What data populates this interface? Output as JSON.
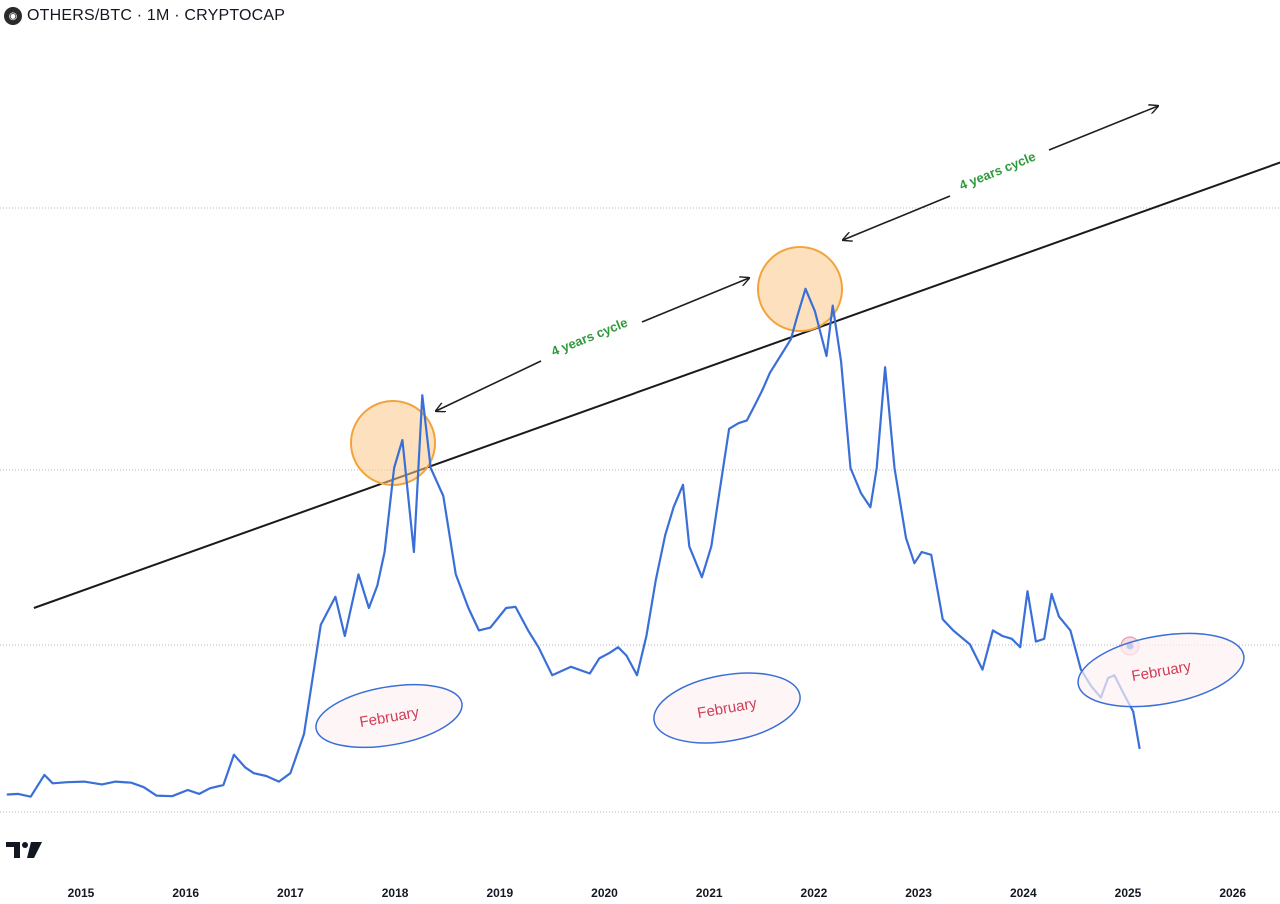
{
  "header": {
    "symbol_icon": "cryptocap-logo-icon",
    "title": "OTHERS/BTC · 1M · CRYPTOCAP"
  },
  "chart_data": {
    "type": "line",
    "title": "OTHERS/BTC · 1M · CRYPTOCAP",
    "xlabel": "",
    "ylabel": "",
    "grid": "horizontal dotted lines",
    "x_range": [
      2014.3,
      2026.55
    ],
    "y_range": [
      0,
      100
    ],
    "x_ticks": [
      "2015",
      "2016",
      "2017",
      "2018",
      "2019",
      "2020",
      "2021",
      "2022",
      "2023",
      "2024",
      "2025",
      "2026"
    ],
    "series": [
      {
        "name": "",
        "color": "#3a6fd8",
        "x": [
          2014.3,
          2014.4,
          2014.52,
          2014.65,
          2014.73,
          2014.87,
          2015.03,
          2015.2,
          2015.33,
          2015.48,
          2015.6,
          2015.72,
          2015.87,
          2016.02,
          2016.13,
          2016.23,
          2016.36,
          2016.46,
          2016.57,
          2016.65,
          2016.77,
          2016.89,
          2017.0,
          2017.13,
          2017.29,
          2017.43,
          2017.52,
          2017.65,
          2017.75,
          2017.83,
          2017.9,
          2017.99,
          2018.07,
          2018.18,
          2018.26,
          2018.34,
          2018.46,
          2018.58,
          2018.7,
          2018.8,
          2018.91,
          2019.06,
          2019.15,
          2019.27,
          2019.37,
          2019.5,
          2019.68,
          2019.86,
          2019.95,
          2020.05,
          2020.13,
          2020.21,
          2020.31,
          2020.4,
          2020.49,
          2020.58,
          2020.66,
          2020.75,
          2020.81,
          2020.93,
          2021.02,
          2021.1,
          2021.19,
          2021.28,
          2021.36,
          2021.43,
          2021.51,
          2021.58,
          2021.68,
          2021.78,
          2021.84,
          2021.92,
          2022.01,
          2022.12,
          2022.18,
          2022.26,
          2022.35,
          2022.45,
          2022.54,
          2022.6,
          2022.68,
          2022.77,
          2022.88,
          2022.96,
          2023.03,
          2023.12,
          2023.23,
          2023.33,
          2023.49,
          2023.61,
          2023.71,
          2023.8,
          2023.89,
          2023.97,
          2024.04,
          2024.12,
          2024.2,
          2024.27,
          2024.34,
          2024.45,
          2024.55,
          2024.65,
          2024.74,
          2024.81,
          2024.87,
          2024.95,
          2025.05,
          2025.11
        ],
        "values": [
          1.7,
          1.8,
          1.3,
          5.2,
          3.7,
          3.9,
          4.0,
          3.5,
          4.0,
          3.8,
          3.0,
          1.5,
          1.4,
          2.5,
          1.8,
          2.8,
          3.4,
          8.8,
          6.5,
          5.5,
          5.0,
          4.0,
          5.5,
          12.5,
          32.0,
          37.0,
          30.0,
          41.0,
          35.0,
          39.0,
          45.0,
          60.0,
          65.0,
          45.0,
          73.0,
          60.0,
          55.0,
          41.0,
          35.0,
          31.0,
          31.5,
          35.0,
          35.2,
          31.0,
          28.0,
          23.0,
          24.5,
          23.3,
          26.0,
          27.0,
          28.0,
          26.5,
          23.0,
          30.0,
          40.0,
          48.0,
          53.0,
          57.0,
          46.0,
          40.5,
          46.0,
          56.0,
          67.0,
          68.0,
          68.5,
          71.0,
          74.0,
          77.0,
          80.0,
          83.0,
          87.0,
          92.0,
          88.0,
          80.0,
          89.0,
          79.0,
          60.0,
          55.5,
          53.0,
          60.0,
          78.0,
          60.0,
          47.5,
          43.0,
          45.0,
          44.5,
          33.0,
          31.0,
          28.5,
          24.0,
          31.0,
          30.0,
          29.5,
          28.0,
          38.0,
          29.0,
          29.5,
          37.5,
          33.5,
          31.0,
          24.0,
          21.0,
          19.0,
          22.5,
          23.0,
          20.0,
          16.5,
          10.0
        ]
      }
    ],
    "annotations": {
      "trendline": {
        "label": "",
        "x": [
          2014.55,
          2026.52
        ],
        "y": [
          35.0,
          115.0
        ]
      },
      "cycle_labels": [
        "4 years cycle",
        "4 years cycle"
      ],
      "month_labels": [
        "February",
        "February",
        "February"
      ],
      "circles_at_peaks": [
        2018.0,
        2021.9
      ]
    }
  }
}
